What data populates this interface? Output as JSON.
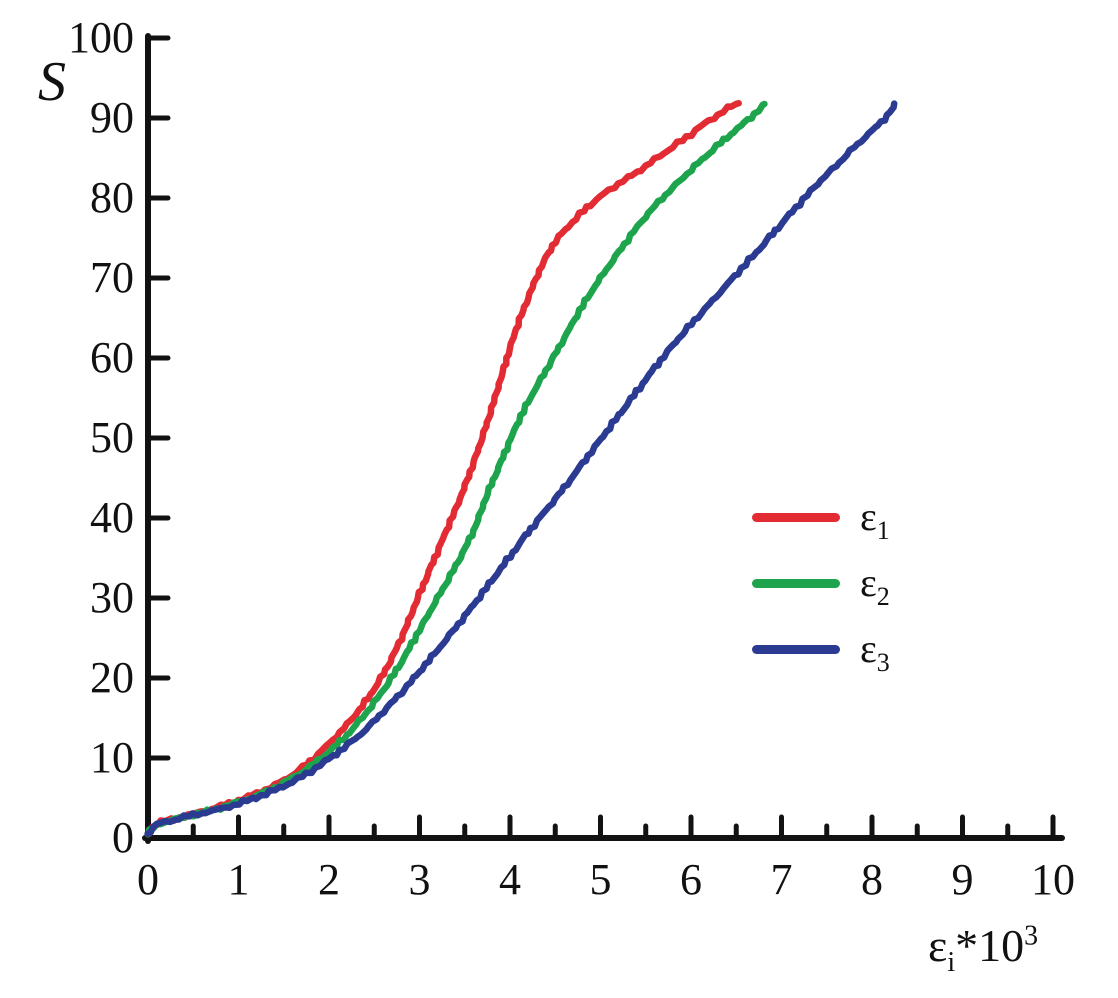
{
  "figure": {
    "background": "#ffffff",
    "axis_color": "#121212"
  },
  "y_axis": {
    "label": "S",
    "ticks": [
      0,
      10,
      20,
      30,
      40,
      50,
      60,
      70,
      80,
      90,
      100
    ],
    "min": 0,
    "max": 100
  },
  "x_axis": {
    "ticks": [
      0,
      1,
      2,
      3,
      4,
      5,
      6,
      7,
      8,
      9,
      10
    ],
    "minor_tick_interval": 0.5,
    "label": {
      "base": "ε",
      "sub": "i",
      "mult": "*10",
      "sup": "3"
    },
    "min": 0,
    "max": 10
  },
  "legend": {
    "position": "middle-right",
    "items": [
      {
        "label_base": "ε",
        "label_sub": "1",
        "color": "#e22b33"
      },
      {
        "label_base": "ε",
        "label_sub": "2",
        "color": "#1ea44d"
      },
      {
        "label_base": "ε",
        "label_sub": "3",
        "color": "#2b3b92"
      }
    ]
  },
  "chart_data": {
    "type": "line",
    "title": "",
    "xlabel": "ε_i * 10^3",
    "ylabel": "S",
    "xlim": [
      0,
      10
    ],
    "ylim": [
      0,
      100
    ],
    "grid": false,
    "legend_position": "middle-right",
    "series": [
      {
        "name": "ε1",
        "color": "#e22b33",
        "points": [
          [
            0,
            0.5
          ],
          [
            0.1,
            1.8
          ],
          [
            0.3,
            2.4
          ],
          [
            0.5,
            3
          ],
          [
            0.75,
            3.8
          ],
          [
            1,
            4.7
          ],
          [
            1.25,
            5.8
          ],
          [
            1.5,
            7.2
          ],
          [
            1.75,
            9.2
          ],
          [
            2,
            11.8
          ],
          [
            2.2,
            14.2
          ],
          [
            2.4,
            17
          ],
          [
            2.6,
            20.5
          ],
          [
            2.8,
            25
          ],
          [
            3,
            30.5
          ],
          [
            3.15,
            34.5
          ],
          [
            3.3,
            38.5
          ],
          [
            3.45,
            42.5
          ],
          [
            3.6,
            47
          ],
          [
            3.75,
            52
          ],
          [
            3.9,
            57.5
          ],
          [
            4.05,
            63
          ],
          [
            4.2,
            67.5
          ],
          [
            4.35,
            71.5
          ],
          [
            4.5,
            74.5
          ],
          [
            4.65,
            76.5
          ],
          [
            4.85,
            78.8
          ],
          [
            5,
            80.2
          ],
          [
            5.2,
            81.8
          ],
          [
            5.4,
            83.2
          ],
          [
            5.6,
            84.8
          ],
          [
            5.8,
            86.4
          ],
          [
            6,
            88
          ],
          [
            6.15,
            89.3
          ],
          [
            6.3,
            90.4
          ],
          [
            6.45,
            91.5
          ],
          [
            6.52,
            91.8
          ]
        ]
      },
      {
        "name": "ε2",
        "color": "#1ea44d",
        "points": [
          [
            0,
            0.5
          ],
          [
            0.1,
            1.7
          ],
          [
            0.3,
            2.3
          ],
          [
            0.5,
            2.9
          ],
          [
            0.75,
            3.6
          ],
          [
            1,
            4.5
          ],
          [
            1.25,
            5.5
          ],
          [
            1.5,
            6.9
          ],
          [
            1.75,
            8.6
          ],
          [
            2,
            10.8
          ],
          [
            2.2,
            12.9
          ],
          [
            2.4,
            15.5
          ],
          [
            2.6,
            18.5
          ],
          [
            2.8,
            22
          ],
          [
            3,
            26
          ],
          [
            3.2,
            30
          ],
          [
            3.4,
            34
          ],
          [
            3.6,
            38.5
          ],
          [
            3.75,
            43
          ],
          [
            3.9,
            47
          ],
          [
            4.05,
            51
          ],
          [
            4.2,
            54.5
          ],
          [
            4.4,
            58.5
          ],
          [
            4.6,
            62.5
          ],
          [
            4.8,
            66.5
          ],
          [
            5,
            70
          ],
          [
            5.2,
            73.2
          ],
          [
            5.4,
            76.3
          ],
          [
            5.6,
            79
          ],
          [
            5.8,
            81.3
          ],
          [
            6,
            83.5
          ],
          [
            6.2,
            85.6
          ],
          [
            6.4,
            87.6
          ],
          [
            6.55,
            89
          ],
          [
            6.7,
            90.5
          ],
          [
            6.82,
            91.8
          ]
        ]
      },
      {
        "name": "ε3",
        "color": "#2b3b92",
        "points": [
          [
            0,
            0.5
          ],
          [
            0.1,
            1.7
          ],
          [
            0.3,
            2.3
          ],
          [
            0.5,
            2.9
          ],
          [
            0.75,
            3.5
          ],
          [
            1,
            4.3
          ],
          [
            1.25,
            5.3
          ],
          [
            1.5,
            6.5
          ],
          [
            1.75,
            8
          ],
          [
            2,
            9.9
          ],
          [
            2.2,
            11.6
          ],
          [
            2.4,
            13.5
          ],
          [
            2.6,
            15.8
          ],
          [
            2.8,
            18.2
          ],
          [
            3,
            20.8
          ],
          [
            3.2,
            23.5
          ],
          [
            3.4,
            26.3
          ],
          [
            3.6,
            29.2
          ],
          [
            3.8,
            32.2
          ],
          [
            4,
            35.2
          ],
          [
            4.2,
            38.2
          ],
          [
            4.4,
            41
          ],
          [
            4.6,
            43.8
          ],
          [
            4.8,
            46.8
          ],
          [
            5,
            49.8
          ],
          [
            5.2,
            52.8
          ],
          [
            5.4,
            55.8
          ],
          [
            5.6,
            58.8
          ],
          [
            5.8,
            61.6
          ],
          [
            6,
            64.2
          ],
          [
            6.2,
            66.7
          ],
          [
            6.4,
            69.2
          ],
          [
            6.6,
            71.7
          ],
          [
            6.8,
            74.2
          ],
          [
            7,
            76.8
          ],
          [
            7.2,
            79.3
          ],
          [
            7.4,
            81.8
          ],
          [
            7.6,
            84
          ],
          [
            7.8,
            86.3
          ],
          [
            8,
            88.4
          ],
          [
            8.1,
            89.5
          ],
          [
            8.2,
            90.7
          ],
          [
            8.25,
            91.6
          ]
        ]
      }
    ]
  }
}
